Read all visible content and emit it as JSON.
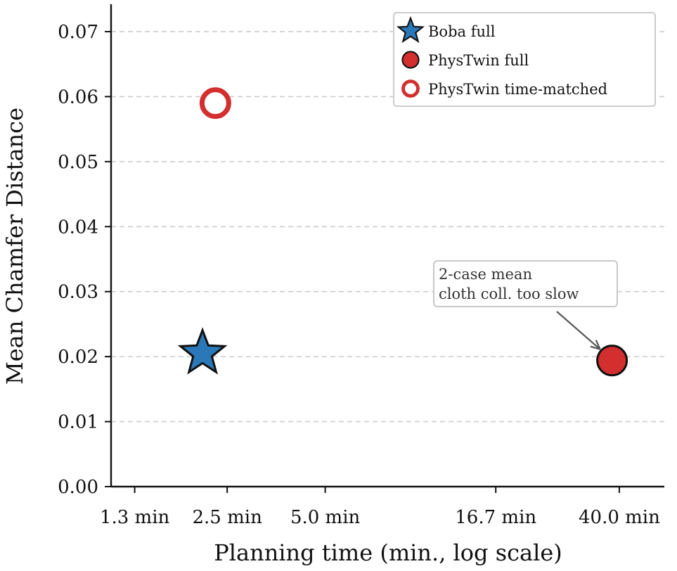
{
  "chart_data": {
    "type": "scatter",
    "title": "",
    "xlabel": "Planning time (min., log scale)",
    "ylabel": "Mean Chamfer Distance",
    "xscale": "log",
    "xlim": [
      1.1,
      55
    ],
    "ylim": [
      0,
      0.074
    ],
    "grid": "y-dashed",
    "legend_position": "top-right",
    "x_ticks": [
      {
        "value": 1.3,
        "label": "1.3 min"
      },
      {
        "value": 2.5,
        "label": "2.5 min"
      },
      {
        "value": 5.0,
        "label": "5.0 min"
      },
      {
        "value": 16.7,
        "label": "16.7 min"
      },
      {
        "value": 40.0,
        "label": "40.0 min"
      }
    ],
    "y_ticks": [
      {
        "value": 0.0,
        "label": "0.00"
      },
      {
        "value": 0.01,
        "label": "0.01"
      },
      {
        "value": 0.02,
        "label": "0.02"
      },
      {
        "value": 0.03,
        "label": "0.03"
      },
      {
        "value": 0.04,
        "label": "0.04"
      },
      {
        "value": 0.05,
        "label": "0.05"
      },
      {
        "value": 0.06,
        "label": "0.06"
      },
      {
        "value": 0.07,
        "label": "0.07"
      }
    ],
    "series": [
      {
        "name": "Boba full",
        "marker": "star",
        "color": "#2b78b8",
        "edge": "#111111",
        "x": [
          2.1
        ],
        "y": [
          0.0205
        ]
      },
      {
        "name": "PhysTwin full",
        "marker": "circle-filled",
        "color": "#d32f2f",
        "edge": "#111111",
        "x": [
          38.0
        ],
        "y": [
          0.0194
        ]
      },
      {
        "name": "PhysTwin time-matched",
        "marker": "circle-open",
        "color": "#d32f2f",
        "edge": "#d32f2f",
        "x": [
          2.3
        ],
        "y": [
          0.059
        ]
      }
    ],
    "annotations": [
      {
        "lines": [
          "2-case mean",
          "cloth coll. too slow"
        ],
        "target_series": "PhysTwin full"
      }
    ]
  }
}
